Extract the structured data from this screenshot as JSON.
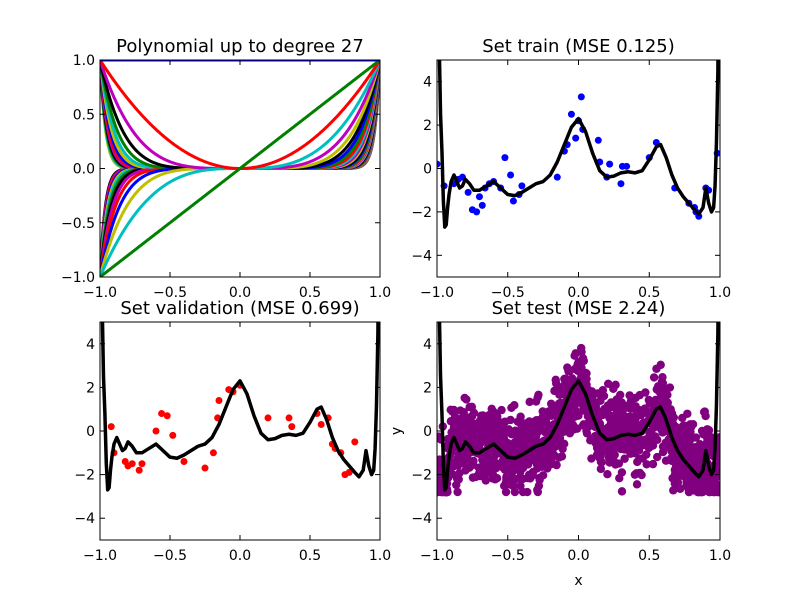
{
  "chart_data": [
    {
      "type": "line",
      "title": "Polynomial up to degree 27",
      "xlim": [
        -1.0,
        1.0
      ],
      "ylim": [
        -1.0,
        1.0
      ],
      "xticks": [
        "−1.0",
        "−0.5",
        "0.0",
        "0.5",
        "1.0"
      ],
      "yticks": [
        "−1.0",
        "−0.5",
        "0.0",
        "0.5",
        "1.0"
      ],
      "xlabel": "",
      "ylabel": "",
      "series_description": "x^k for k = 0..27",
      "max_degree": 27,
      "palette": [
        "#0000ff",
        "#008000",
        "#ff0000",
        "#00bfbf",
        "#bf00bf",
        "#bfbf00",
        "#000000"
      ]
    },
    {
      "type": "scatter",
      "title": "Set train (MSE 0.125)",
      "xlim": [
        -1.0,
        1.0
      ],
      "ylim": [
        -5,
        5
      ],
      "xticks": [
        "−1.0",
        "−0.5",
        "0.0",
        "0.5",
        "1.0"
      ],
      "yticks": [
        "−4",
        "−2",
        "0",
        "2",
        "4"
      ],
      "xlabel": "",
      "ylabel": "",
      "point_color": "#0000ff",
      "points": [
        [
          -1.0,
          0.2
        ],
        [
          -0.95,
          -0.8
        ],
        [
          -0.88,
          -0.7
        ],
        [
          -0.85,
          -0.5
        ],
        [
          -0.82,
          -0.4
        ],
        [
          -0.78,
          -1.1
        ],
        [
          -0.75,
          -1.9
        ],
        [
          -0.72,
          -2.0
        ],
        [
          -0.7,
          -1.3
        ],
        [
          -0.68,
          -1.7
        ],
        [
          -0.66,
          -0.9
        ],
        [
          -0.63,
          -0.7
        ],
        [
          -0.6,
          -0.6
        ],
        [
          -0.55,
          -0.9
        ],
        [
          -0.52,
          0.5
        ],
        [
          -0.48,
          -0.3
        ],
        [
          -0.46,
          -1.5
        ],
        [
          -0.42,
          -1.2
        ],
        [
          -0.4,
          -0.8
        ],
        [
          -0.15,
          -0.4
        ],
        [
          -0.1,
          0.8
        ],
        [
          -0.08,
          1.1
        ],
        [
          -0.05,
          2.5
        ],
        [
          -0.02,
          1.4
        ],
        [
          0.0,
          2.2
        ],
        [
          0.02,
          3.3
        ],
        [
          0.03,
          1.8
        ],
        [
          0.14,
          1.3
        ],
        [
          0.15,
          0.3
        ],
        [
          0.2,
          -0.4
        ],
        [
          0.22,
          0.2
        ],
        [
          0.3,
          -0.7
        ],
        [
          0.31,
          0.1
        ],
        [
          0.34,
          0.1
        ],
        [
          0.5,
          0.5
        ],
        [
          0.55,
          1.2
        ],
        [
          0.68,
          -0.9
        ],
        [
          0.78,
          -1.6
        ],
        [
          0.82,
          -1.8
        ],
        [
          0.83,
          -2.0
        ],
        [
          0.85,
          -2.2
        ],
        [
          0.9,
          -0.9
        ],
        [
          0.92,
          -1.0
        ],
        [
          0.98,
          0.7
        ]
      ],
      "model_line_color": "#000000"
    },
    {
      "type": "scatter",
      "title": "Set validation (MSE 0.699)",
      "xlim": [
        -1.0,
        1.0
      ],
      "ylim": [
        -5,
        5
      ],
      "xticks": [
        "−1.0",
        "−0.5",
        "0.0",
        "0.5",
        "1.0"
      ],
      "yticks": [
        "−4",
        "−2",
        "0",
        "2",
        "4"
      ],
      "xlabel": "",
      "ylabel": "",
      "point_color": "#ff0000",
      "points": [
        [
          -0.92,
          0.2
        ],
        [
          -0.9,
          -1.0
        ],
        [
          -0.82,
          -1.4
        ],
        [
          -0.8,
          -1.6
        ],
        [
          -0.77,
          -1.5
        ],
        [
          -0.72,
          -1.8
        ],
        [
          -0.7,
          -1.5
        ],
        [
          -0.6,
          0.0
        ],
        [
          -0.56,
          0.8
        ],
        [
          -0.52,
          0.7
        ],
        [
          -0.48,
          -0.2
        ],
        [
          -0.4,
          -1.4
        ],
        [
          -0.25,
          -1.7
        ],
        [
          -0.19,
          -1.0
        ],
        [
          -0.16,
          0.6
        ],
        [
          -0.15,
          1.4
        ],
        [
          -0.08,
          1.9
        ],
        [
          -0.05,
          1.8
        ],
        [
          0.0,
          2.1
        ],
        [
          0.2,
          0.6
        ],
        [
          0.35,
          0.6
        ],
        [
          0.37,
          0.2
        ],
        [
          0.55,
          0.8
        ],
        [
          0.58,
          0.3
        ],
        [
          0.63,
          0.6
        ],
        [
          0.66,
          -0.6
        ],
        [
          0.68,
          -0.8
        ],
        [
          0.72,
          -1.0
        ],
        [
          0.75,
          -2.0
        ],
        [
          0.78,
          -1.9
        ],
        [
          0.82,
          -0.5
        ]
      ],
      "model_line_color": "#000000"
    },
    {
      "type": "scatter",
      "title": "Set test (MSE 2.24)",
      "xlim": [
        -1.0,
        1.0
      ],
      "ylim": [
        -5,
        5
      ],
      "xticks": [
        "−1.0",
        "−0.5",
        "0.0",
        "0.5",
        "1.0"
      ],
      "yticks": [
        "−4",
        "−2",
        "0",
        "2",
        "4"
      ],
      "xlabel": "x",
      "ylabel": "y",
      "point_color": "#800080",
      "noise_band": 1.7,
      "model_line_color": "#000000"
    }
  ],
  "model_curve": {
    "x": [
      -0.995,
      -0.985,
      -0.975,
      -0.965,
      -0.955,
      -0.945,
      -0.935,
      -0.925,
      -0.915,
      -0.9,
      -0.88,
      -0.86,
      -0.84,
      -0.82,
      -0.8,
      -0.77,
      -0.74,
      -0.7,
      -0.65,
      -0.6,
      -0.55,
      -0.5,
      -0.45,
      -0.4,
      -0.35,
      -0.3,
      -0.25,
      -0.2,
      -0.15,
      -0.1,
      -0.05,
      0.0,
      0.05,
      0.1,
      0.15,
      0.2,
      0.25,
      0.3,
      0.35,
      0.4,
      0.45,
      0.5,
      0.55,
      0.58,
      0.62,
      0.66,
      0.7,
      0.74,
      0.78,
      0.82,
      0.85,
      0.88,
      0.9,
      0.92,
      0.94,
      0.955,
      0.965,
      0.975,
      0.985,
      0.995
    ],
    "y": [
      14.0,
      6.0,
      2.5,
      0.8,
      -1.5,
      -2.7,
      -2.6,
      -1.8,
      -1.2,
      -0.6,
      -0.3,
      -0.6,
      -0.9,
      -0.8,
      -0.5,
      -0.7,
      -1.0,
      -1.0,
      -0.8,
      -0.6,
      -0.9,
      -1.2,
      -1.25,
      -1.1,
      -0.9,
      -0.7,
      -0.6,
      -0.3,
      0.3,
      1.1,
      1.9,
      2.3,
      1.7,
      0.7,
      -0.1,
      -0.4,
      -0.35,
      -0.2,
      -0.15,
      -0.2,
      -0.1,
      0.4,
      1.0,
      1.1,
      0.5,
      -0.3,
      -0.9,
      -1.3,
      -1.6,
      -1.9,
      -2.1,
      -1.8,
      -0.9,
      -1.6,
      -2.0,
      -1.8,
      -0.8,
      1.2,
      4.5,
      12.0
    ]
  }
}
